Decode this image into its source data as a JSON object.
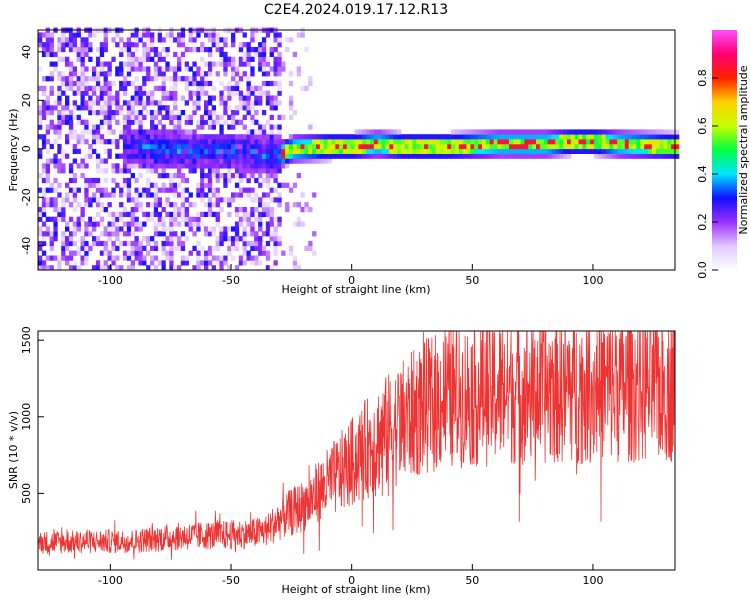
{
  "page_title": "C2E4.2024.019.17.12.R13",
  "chart_data": [
    {
      "type": "heatmap",
      "xlabel": "Height of straight line (km)",
      "ylabel": "Frequency (Hz)",
      "xlim": [
        -130,
        134
      ],
      "ylim": [
        -50,
        49
      ],
      "x_ticks": [
        -100,
        -50,
        0,
        50,
        100
      ],
      "y_ticks": [
        -40,
        -20,
        0,
        20,
        40
      ],
      "grid": false,
      "colorbar": {
        "label": "Normalized spectral amplitude",
        "range": [
          0,
          1
        ],
        "ticks": [
          0.0,
          0.2,
          0.4,
          0.6,
          0.8
        ],
        "colors": [
          "#ffffff",
          "#e0c8ff",
          "#9b30ff",
          "#1010ff",
          "#00e5ff",
          "#00ff40",
          "#c8ff00",
          "#ffd000",
          "#ff2000",
          "#ff0070",
          "#ff50ff"
        ]
      },
      "ridge": {
        "x": [
          -130,
          -90,
          -70,
          -50,
          -40,
          -32,
          -25,
          -10,
          0,
          10,
          20,
          40,
          60,
          80,
          90,
          100,
          110,
          134
        ],
        "y": [
          0,
          0,
          -2,
          -2,
          -3,
          -4,
          -1,
          0,
          0,
          1,
          0,
          0,
          1,
          1,
          2,
          2,
          1,
          0
        ]
      }
    },
    {
      "type": "line",
      "xlabel": "Height of straight line (km)",
      "ylabel": "SNR (10 * v/v)",
      "xlim": [
        -130,
        134
      ],
      "ylim": [
        0,
        1560
      ],
      "x_ticks": [
        -100,
        -50,
        0,
        50,
        100
      ],
      "y_ticks": [
        500,
        1000,
        1500
      ],
      "grid": false,
      "line_color": "#ee3333",
      "trend": {
        "x": [
          -130,
          -90,
          -70,
          -50,
          -40,
          -35,
          -30,
          -20,
          -10,
          0,
          10,
          20,
          30,
          40,
          60,
          80,
          100,
          134
        ],
        "y": [
          180,
          190,
          220,
          230,
          240,
          260,
          330,
          420,
          560,
          700,
          850,
          960,
          1060,
          1130,
          1170,
          1180,
          1190,
          1200
        ]
      }
    }
  ]
}
